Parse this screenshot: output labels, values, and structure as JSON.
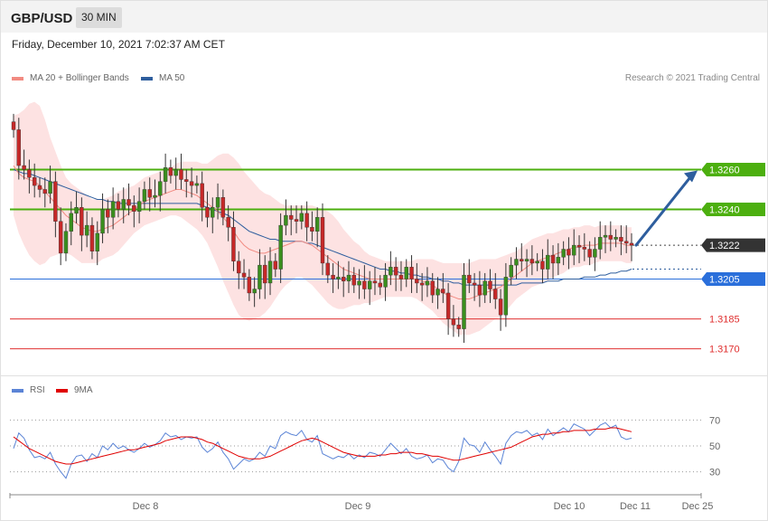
{
  "header": {
    "pair": "GBP/USD",
    "timeframe": "30 MIN"
  },
  "datetime": "Friday, December 10, 2021 7:02:37 AM CET",
  "legend": {
    "ma20_label": "MA 20 + Bollinger Bands",
    "ma20_color": "#f28b82",
    "ma50_label": "MA 50",
    "ma50_color": "#2e5e9e",
    "credit": "Research © 2021 Trading Central"
  },
  "rsi_legend": {
    "rsi_label": "RSI",
    "rsi_color": "#5b84d6",
    "ma_label": "9MA",
    "ma_color": "#e00000"
  },
  "chart_data": [
    {
      "type": "candlestick",
      "title": "GBP/USD 30 MIN",
      "ylim": [
        1.3158,
        1.3302
      ],
      "levels": [
        {
          "value": 1.326,
          "label": "1.3260",
          "kind": "resistance",
          "color": "#4caf0f"
        },
        {
          "value": 1.324,
          "label": "1.3240",
          "kind": "resistance",
          "color": "#4caf0f"
        },
        {
          "value": 1.3222,
          "label": "1.3222",
          "kind": "last",
          "color": "#333333"
        },
        {
          "value": 1.3205,
          "label": "1.3205",
          "kind": "pivot",
          "color": "#2a6fdb"
        },
        {
          "value": 1.3185,
          "label": "1.3185",
          "kind": "support",
          "color": "#e03030"
        },
        {
          "value": 1.317,
          "label": "1.3170",
          "kind": "support",
          "color": "#e03030"
        }
      ],
      "forecast": {
        "from": 1.3222,
        "to": 1.326,
        "direction": "up"
      },
      "closes": [
        1.328,
        1.3262,
        1.326,
        1.3256,
        1.3252,
        1.325,
        1.3248,
        1.3254,
        1.3234,
        1.3218,
        1.3229,
        1.3238,
        1.3241,
        1.3227,
        1.3232,
        1.3219,
        1.3228,
        1.324,
        1.3236,
        1.3244,
        1.324,
        1.3245,
        1.3242,
        1.3239,
        1.3244,
        1.325,
        1.3246,
        1.3247,
        1.3254,
        1.3261,
        1.3257,
        1.326,
        1.3255,
        1.3254,
        1.3252,
        1.3253,
        1.3241,
        1.3236,
        1.3241,
        1.3246,
        1.3236,
        1.3231,
        1.3214,
        1.3208,
        1.3206,
        1.3198,
        1.32,
        1.3212,
        1.3203,
        1.3214,
        1.321,
        1.3232,
        1.3237,
        1.3235,
        1.3234,
        1.3238,
        1.3231,
        1.3229,
        1.3236,
        1.3213,
        1.3207,
        1.3205,
        1.3206,
        1.3204,
        1.3207,
        1.3202,
        1.3204,
        1.32,
        1.3204,
        1.3203,
        1.3201,
        1.3207,
        1.3211,
        1.3207,
        1.3205,
        1.3211,
        1.3205,
        1.3203,
        1.3202,
        1.3204,
        1.3197,
        1.32,
        1.3198,
        1.3185,
        1.3182,
        1.318,
        1.3207,
        1.3203,
        1.3202,
        1.3197,
        1.3204,
        1.32,
        1.3195,
        1.3187,
        1.3206,
        1.3212,
        1.3215,
        1.3214,
        1.3215,
        1.3213,
        1.3214,
        1.321,
        1.3217,
        1.3213,
        1.3216,
        1.322,
        1.3217,
        1.3222,
        1.3221,
        1.322,
        1.3216,
        1.322,
        1.3226,
        1.3227,
        1.3225,
        1.3226,
        1.3224,
        1.3223,
        1.3222
      ],
      "ma20": [
        1.3262,
        1.3258,
        1.3256,
        1.3255,
        1.3254,
        1.3252,
        1.3249,
        1.3246,
        1.3243,
        1.324,
        1.3237,
        1.3235,
        1.3233,
        1.3231,
        1.323,
        1.3229,
        1.3229,
        1.323,
        1.3231,
        1.3232,
        1.3234,
        1.3236,
        1.3238,
        1.324,
        1.3242,
        1.3244,
        1.3245,
        1.3246,
        1.3247,
        1.3248,
        1.3249,
        1.325,
        1.325,
        1.3249,
        1.3248,
        1.3247,
        1.3245,
        1.3243,
        1.3241,
        1.3239,
        1.3236,
        1.3233,
        1.3229,
        1.3225,
        1.3222,
        1.322,
        1.3219,
        1.3218,
        1.3218,
        1.3219,
        1.322,
        1.3221,
        1.3222,
        1.3223,
        1.3224,
        1.3224,
        1.3223,
        1.3222,
        1.322,
        1.3218,
        1.3216,
        1.3214,
        1.3212,
        1.321,
        1.3209,
        1.3208,
        1.3207,
        1.3206,
        1.3205,
        1.3205,
        1.3205,
        1.3205,
        1.3205,
        1.3205,
        1.3205,
        1.3205,
        1.3205,
        1.3205,
        1.3204,
        1.3203,
        1.3202,
        1.32,
        1.3198,
        1.3197,
        1.3196,
        1.3195,
        1.3195,
        1.3195,
        1.3196,
        1.3197,
        1.3198,
        1.3199,
        1.32,
        1.3201,
        1.3203,
        1.3205,
        1.3207,
        1.3209,
        1.3211,
        1.3213,
        1.3214,
        1.3215,
        1.3216,
        1.3217,
        1.3218,
        1.3219,
        1.322,
        1.3221,
        1.3221,
        1.3222,
        1.3222,
        1.3222,
        1.3223,
        1.3223,
        1.3223,
        1.3223,
        1.3223,
        1.3222,
        1.3222
      ],
      "ma50": [
        1.326,
        1.3259,
        1.3258,
        1.3258,
        1.3257,
        1.3256,
        1.3255,
        1.3254,
        1.3253,
        1.3252,
        1.3251,
        1.325,
        1.3249,
        1.3248,
        1.3247,
        1.3246,
        1.3245,
        1.3245,
        1.3244,
        1.3244,
        1.3243,
        1.3243,
        1.3243,
        1.3243,
        1.3243,
        1.3243,
        1.3243,
        1.3243,
        1.3243,
        1.3243,
        1.3243,
        1.3243,
        1.3243,
        1.3243,
        1.3243,
        1.3243,
        1.3242,
        1.3241,
        1.324,
        1.3239,
        1.3238,
        1.3237,
        1.3235,
        1.3233,
        1.3231,
        1.3229,
        1.3228,
        1.3227,
        1.3226,
        1.3225,
        1.3225,
        1.3224,
        1.3224,
        1.3224,
        1.3224,
        1.3224,
        1.3223,
        1.3223,
        1.3222,
        1.3221,
        1.322,
        1.3219,
        1.3218,
        1.3217,
        1.3216,
        1.3215,
        1.3214,
        1.3213,
        1.3212,
        1.3211,
        1.321,
        1.321,
        1.3209,
        1.3209,
        1.3208,
        1.3208,
        1.3207,
        1.3207,
        1.3206,
        1.3206,
        1.3205,
        1.3205,
        1.3204,
        1.3204,
        1.3203,
        1.3203,
        1.3202,
        1.3202,
        1.3202,
        1.3202,
        1.3202,
        1.3202,
        1.3202,
        1.3202,
        1.3202,
        1.3202,
        1.3202,
        1.3203,
        1.3203,
        1.3203,
        1.3203,
        1.3203,
        1.3204,
        1.3204,
        1.3204,
        1.3205,
        1.3205,
        1.3205,
        1.3205,
        1.3206,
        1.3206,
        1.3206,
        1.3207,
        1.3207,
        1.3208,
        1.3208,
        1.3209,
        1.3209,
        1.321
      ],
      "bb_width": [
        0.0025,
        0.003,
        0.0034,
        0.0038,
        0.004,
        0.004,
        0.0036,
        0.003,
        0.0026,
        0.0022,
        0.0019,
        0.0018,
        0.0018,
        0.0018,
        0.0017,
        0.0016,
        0.0016,
        0.0015,
        0.0015,
        0.0015,
        0.0015,
        0.0014,
        0.0013,
        0.0012,
        0.0012,
        0.0012,
        0.0012,
        0.0012,
        0.0012,
        0.0012,
        0.0012,
        0.0013,
        0.0014,
        0.0015,
        0.0016,
        0.0017,
        0.0018,
        0.002,
        0.0024,
        0.0028,
        0.0032,
        0.0035,
        0.0037,
        0.0038,
        0.0037,
        0.0036,
        0.0034,
        0.0032,
        0.003,
        0.0028,
        0.0025,
        0.0022,
        0.002,
        0.0019,
        0.0018,
        0.0018,
        0.0019,
        0.002,
        0.0021,
        0.0022,
        0.0023,
        0.0023,
        0.0022,
        0.002,
        0.0018,
        0.0016,
        0.0015,
        0.0013,
        0.0012,
        0.0011,
        0.001,
        0.0009,
        0.0009,
        0.0009,
        0.0009,
        0.0009,
        0.0009,
        0.001,
        0.0011,
        0.0012,
        0.0013,
        0.0014,
        0.0015,
        0.0016,
        0.0017,
        0.0018,
        0.0018,
        0.0018,
        0.0018,
        0.0018,
        0.0017,
        0.0016,
        0.0015,
        0.0015,
        0.0014,
        0.0013,
        0.0012,
        0.0012,
        0.0012,
        0.0012,
        0.0012,
        0.0012,
        0.0012,
        0.0011,
        0.0011,
        0.0011,
        0.001,
        0.001,
        0.001,
        0.001,
        0.001,
        0.0009,
        0.0009,
        0.0009,
        0.0009,
        0.0009,
        0.0009,
        0.0009,
        0.0009
      ]
    },
    {
      "type": "line",
      "title": "RSI",
      "ylim": [
        15,
        85
      ],
      "yticks": [
        70,
        50,
        30
      ],
      "xticks": [
        "Dec 8",
        "Dec 9",
        "Dec 10",
        "Dec 11",
        "Dec 25"
      ],
      "series": [
        {
          "name": "RSI",
          "values": [
            48,
            60,
            56,
            47,
            41,
            42,
            40,
            45,
            36,
            30,
            25,
            36,
            42,
            43,
            38,
            44,
            41,
            50,
            47,
            52,
            48,
            50,
            47,
            45,
            48,
            52,
            49,
            51,
            54,
            60,
            57,
            58,
            55,
            57,
            56,
            57,
            49,
            45,
            48,
            53,
            45,
            40,
            32,
            36,
            40,
            38,
            40,
            45,
            42,
            50,
            48,
            58,
            61,
            59,
            58,
            62,
            55,
            53,
            58,
            44,
            42,
            40,
            42,
            41,
            44,
            40,
            43,
            41,
            45,
            44,
            42,
            47,
            52,
            48,
            44,
            48,
            42,
            40,
            41,
            43,
            37,
            40,
            39,
            33,
            30,
            38,
            56,
            51,
            50,
            45,
            53,
            47,
            42,
            36,
            52,
            58,
            61,
            60,
            62,
            58,
            60,
            55,
            63,
            58,
            61,
            64,
            61,
            67,
            65,
            63,
            58,
            62,
            66,
            68,
            64,
            66,
            57,
            55,
            56
          ]
        },
        {
          "name": "9MA",
          "values": [
            57,
            54,
            51,
            48,
            46,
            44,
            42,
            40,
            38,
            37,
            36,
            36,
            37,
            38,
            39,
            40,
            41,
            42,
            43,
            44,
            45,
            46,
            47,
            47,
            48,
            49,
            50,
            51,
            52,
            54,
            55,
            56,
            57,
            57,
            57,
            56,
            55,
            53,
            52,
            50,
            48,
            46,
            44,
            42,
            41,
            40,
            40,
            40,
            41,
            42,
            44,
            46,
            48,
            50,
            52,
            54,
            55,
            56,
            55,
            53,
            51,
            49,
            47,
            45,
            44,
            43,
            42,
            42,
            42,
            42,
            43,
            43,
            44,
            44,
            45,
            45,
            45,
            44,
            44,
            43,
            42,
            42,
            41,
            40,
            39,
            39,
            40,
            41,
            42,
            43,
            44,
            45,
            46,
            47,
            48,
            49,
            51,
            53,
            55,
            57,
            58,
            59,
            59,
            60,
            60,
            61,
            61,
            62,
            62,
            62,
            62,
            63,
            63,
            63,
            64,
            64,
            63,
            62,
            61
          ]
        }
      ]
    }
  ]
}
